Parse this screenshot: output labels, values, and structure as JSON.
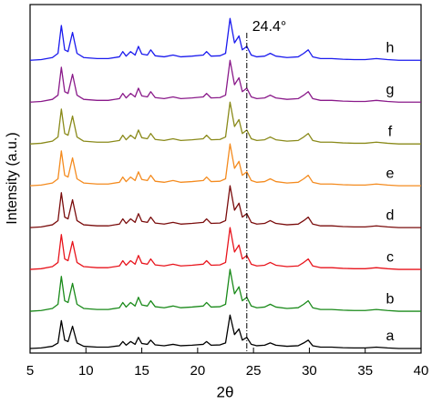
{
  "chart_data": {
    "type": "line",
    "xlabel": "2θ",
    "ylabel": "Intensity (a.u.)",
    "xlim": [
      5,
      40
    ],
    "xticks": [
      5,
      10,
      15,
      20,
      25,
      30,
      35,
      40
    ],
    "ylim": [
      0,
      100
    ],
    "annotation": {
      "x": 24.4,
      "label": "24.4°"
    },
    "x": [
      5,
      6,
      7,
      7.5,
      7.8,
      8.1,
      8.4,
      8.8,
      9.2,
      9.8,
      11,
      12,
      13,
      13.3,
      13.6,
      14,
      14.4,
      14.7,
      15,
      15.5,
      15.8,
      16.2,
      17,
      17.8,
      18.5,
      19.5,
      20.5,
      20.8,
      21.2,
      22,
      22.5,
      22.9,
      23.3,
      23.7,
      24,
      24.4,
      24.8,
      25.3,
      26,
      26.5,
      27,
      28,
      29,
      29.5,
      29.9,
      30.3,
      31,
      32,
      33,
      34,
      35,
      36,
      37,
      38,
      39,
      40
    ],
    "series": [
      {
        "name": "a",
        "color": "#000000",
        "values": [
          1.3,
          1.46,
          1.94,
          2.9,
          9.3,
          3.7,
          3.3,
          7.7,
          2.9,
          1.94,
          1.7,
          1.7,
          2.1,
          3.3,
          2.26,
          3.3,
          2.5,
          4.5,
          2.74,
          2.5,
          3.7,
          2.34,
          2.1,
          2.5,
          2.1,
          2.26,
          2.5,
          3.3,
          2.26,
          2.34,
          2.9,
          10.9,
          5.3,
          6.9,
          3.7,
          4.5,
          2.5,
          2.1,
          2.26,
          2.9,
          2.26,
          1.94,
          2.1,
          2.9,
          3.7,
          2.1,
          1.7,
          1.7,
          1.54,
          1.46,
          1.46,
          1.7,
          1.46,
          1.3,
          1.3,
          1.3
        ]
      },
      {
        "name": "b",
        "color": "#1a8a1a",
        "values": [
          12,
          12.2,
          12.8,
          14,
          22,
          15,
          14.5,
          20,
          14,
          12.8,
          12.5,
          12.5,
          13,
          14.5,
          13.2,
          14.5,
          13.5,
          16,
          13.8,
          13.5,
          15,
          13.3,
          13,
          13.5,
          13,
          13.2,
          13.5,
          14.5,
          13.2,
          13.3,
          14,
          24,
          17,
          19,
          15,
          16,
          13.5,
          13,
          13.2,
          14,
          13.2,
          12.8,
          13,
          14,
          15,
          13,
          12.5,
          12.5,
          12.3,
          12.2,
          12.2,
          12.5,
          12.2,
          12,
          12,
          12
        ]
      },
      {
        "name": "c",
        "color": "#e8141c",
        "values": [
          24,
          24.2,
          24.8,
          26,
          34,
          27,
          26.5,
          32,
          26,
          24.8,
          24.5,
          24.5,
          25,
          26.5,
          25.2,
          26.5,
          25.5,
          28,
          25.8,
          25.5,
          27,
          25.3,
          25,
          25.5,
          25,
          25.2,
          25.5,
          26.5,
          25.2,
          25.3,
          26,
          36,
          29,
          31,
          27,
          28,
          25.5,
          25,
          25.2,
          26,
          25.2,
          24.8,
          25,
          26,
          27,
          25,
          24.5,
          24.5,
          24.3,
          24.2,
          24.2,
          24.5,
          24.2,
          24,
          24,
          24
        ]
      },
      {
        "name": "d",
        "color": "#7a0c0c",
        "values": [
          36,
          36.2,
          36.8,
          38,
          46,
          39,
          38.5,
          44,
          38,
          36.8,
          36.5,
          36.5,
          37,
          38.5,
          37.2,
          38.5,
          37.5,
          40,
          37.8,
          37.5,
          39,
          37.3,
          37,
          37.5,
          37,
          37.2,
          37.5,
          38.5,
          37.2,
          37.3,
          38,
          48,
          41,
          43,
          39,
          40,
          37.5,
          37,
          37.2,
          38,
          37.2,
          36.8,
          37,
          38,
          39,
          37,
          36.5,
          36.5,
          36.3,
          36.2,
          36.2,
          36.5,
          36.2,
          36,
          36,
          36
        ]
      },
      {
        "name": "e",
        "color": "#f48b1f",
        "values": [
          48,
          48.2,
          48.8,
          50,
          58,
          51,
          50.5,
          56,
          50,
          48.8,
          48.5,
          48.5,
          49,
          50.5,
          49.2,
          50.5,
          49.5,
          52,
          49.8,
          49.5,
          51,
          49.3,
          49,
          49.5,
          49,
          49.2,
          49.5,
          50.5,
          49.2,
          49.3,
          50,
          60,
          53,
          55,
          51,
          52,
          49.5,
          49,
          49.2,
          50,
          49.2,
          48.8,
          49,
          50,
          51,
          49,
          48.5,
          48.5,
          48.3,
          48.2,
          48.2,
          48.5,
          48.2,
          48,
          48,
          48
        ]
      },
      {
        "name": "f",
        "color": "#8a8a1a",
        "values": [
          60,
          60.2,
          60.8,
          62,
          70,
          63,
          62.5,
          68,
          62,
          60.8,
          60.5,
          60.5,
          61,
          62.5,
          61.2,
          62.5,
          61.5,
          64,
          61.8,
          61.5,
          63,
          61.3,
          61,
          61.5,
          61,
          61.2,
          61.5,
          62.5,
          61.2,
          61.3,
          62,
          72,
          65,
          67,
          63,
          64,
          61.5,
          61,
          61.2,
          62,
          61.2,
          60.8,
          61,
          62,
          63,
          61,
          60.5,
          60.5,
          60.3,
          60.2,
          60.2,
          60.5,
          60.2,
          60,
          60,
          60
        ]
      },
      {
        "name": "g",
        "color": "#8a1a8a",
        "values": [
          72,
          72.2,
          72.8,
          74,
          82,
          75,
          74.5,
          80,
          74,
          72.8,
          72.5,
          72.5,
          73,
          74.5,
          73.2,
          74.5,
          73.5,
          76,
          73.8,
          73.5,
          75,
          73.3,
          73,
          73.5,
          73,
          73.2,
          73.5,
          74.5,
          73.2,
          73.3,
          74,
          84,
          77,
          79,
          75,
          76,
          73.5,
          73,
          73.2,
          74,
          73.2,
          72.8,
          73,
          74,
          75,
          73,
          72.5,
          72.5,
          72.3,
          72.2,
          72.2,
          72.5,
          72.2,
          72,
          72,
          72
        ]
      },
      {
        "name": "h",
        "color": "#1a1aee",
        "values": [
          84,
          84.2,
          84.8,
          86,
          94,
          87,
          86.5,
          92,
          86,
          84.8,
          84.5,
          84.5,
          85,
          86.5,
          85.2,
          86.5,
          85.5,
          88,
          85.8,
          85.5,
          87,
          85.3,
          85,
          85.5,
          85,
          85.2,
          85.5,
          86.5,
          85.2,
          85.3,
          86,
          96,
          89,
          91,
          87,
          88,
          85.5,
          85,
          85.2,
          86,
          85.2,
          84.8,
          85,
          86,
          87,
          85,
          84.5,
          84.5,
          84.3,
          84.2,
          84.2,
          84.5,
          84.2,
          84,
          84,
          84
        ]
      }
    ]
  }
}
